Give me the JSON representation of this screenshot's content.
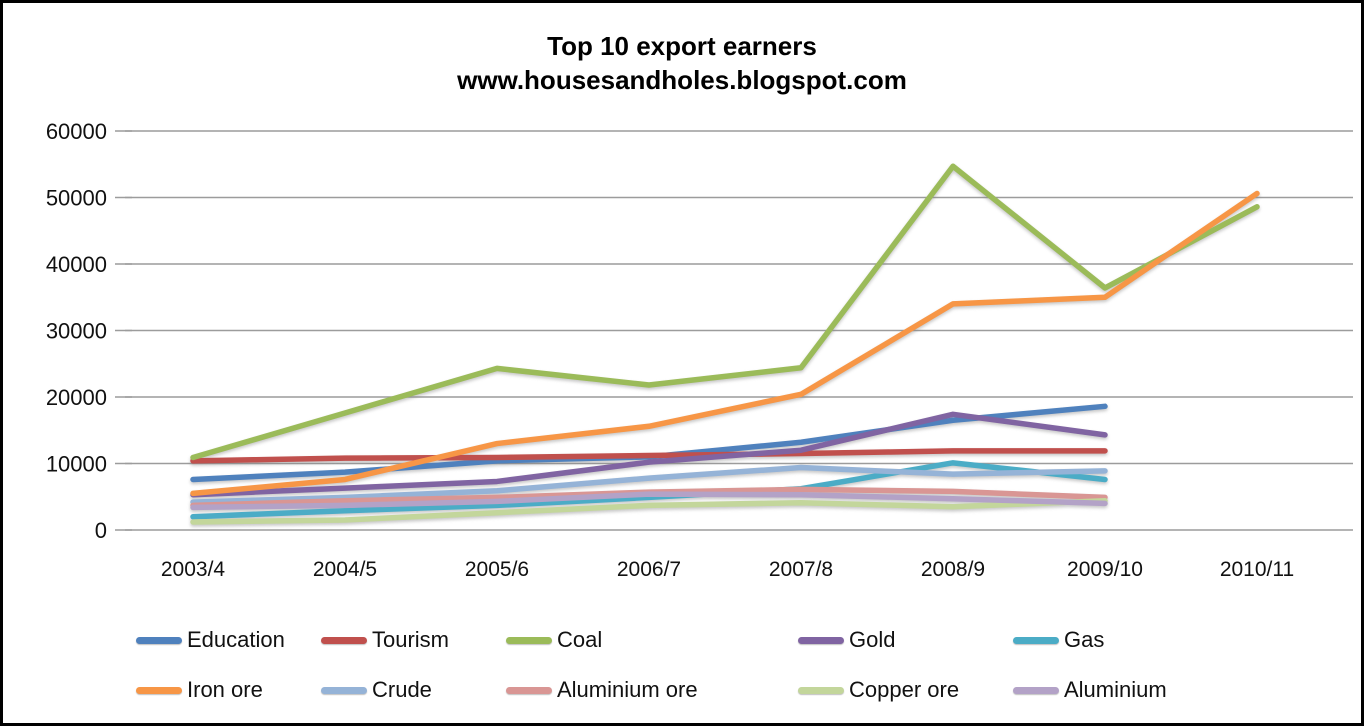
{
  "title": {
    "line1": "Top 10 export earners",
    "line2": "www.housesandholes.blogspot.com"
  },
  "chart_data": {
    "type": "line",
    "title": "Top 10 export earners",
    "subtitle": "www.housesandholes.blogspot.com",
    "categories": [
      "2003/4",
      "2004/5",
      "2005/6",
      "2006/7",
      "2007/8",
      "2008/9",
      "2009/10",
      "2010/11"
    ],
    "y_ticks": [
      0,
      10000,
      20000,
      30000,
      40000,
      50000,
      60000
    ],
    "ylim": [
      0,
      60000
    ],
    "grid": true,
    "legend_position": "bottom",
    "series": [
      {
        "name": "Education",
        "color": "#4F81BD",
        "values": [
          7600,
          8700,
          10400,
          11000,
          13200,
          16500,
          18600,
          null
        ]
      },
      {
        "name": "Tourism",
        "color": "#C0504D",
        "values": [
          10400,
          10800,
          10900,
          11200,
          11500,
          11900,
          11900,
          null
        ]
      },
      {
        "name": "Coal",
        "color": "#9BBB59",
        "values": [
          10900,
          17600,
          24300,
          21800,
          24400,
          54700,
          36400,
          48600
        ]
      },
      {
        "name": "Gold",
        "color": "#8064A2",
        "values": [
          5300,
          6300,
          7300,
          10200,
          12000,
          17400,
          14300,
          null
        ]
      },
      {
        "name": "Gas",
        "color": "#4BACC6",
        "values": [
          2000,
          2900,
          3700,
          4900,
          6200,
          10100,
          7600,
          null
        ]
      },
      {
        "name": "Iron ore",
        "color": "#F79646",
        "values": [
          5500,
          7600,
          13000,
          15600,
          20400,
          34000,
          35000,
          50600
        ]
      },
      {
        "name": "Crude",
        "color": "#95B3D7",
        "values": [
          4200,
          4900,
          5900,
          7800,
          9400,
          8400,
          8900,
          null
        ]
      },
      {
        "name": "Aluminium ore",
        "color": "#D99694",
        "values": [
          3700,
          4400,
          4900,
          5700,
          6100,
          5800,
          4900,
          null
        ]
      },
      {
        "name": "Copper ore",
        "color": "#C3D69B",
        "values": [
          1200,
          1500,
          2600,
          3700,
          4100,
          3500,
          4400,
          null
        ]
      },
      {
        "name": "Aluminium",
        "color": "#B3A2C7",
        "values": [
          3400,
          3700,
          4300,
          5400,
          5300,
          4700,
          4000,
          null
        ]
      }
    ]
  }
}
